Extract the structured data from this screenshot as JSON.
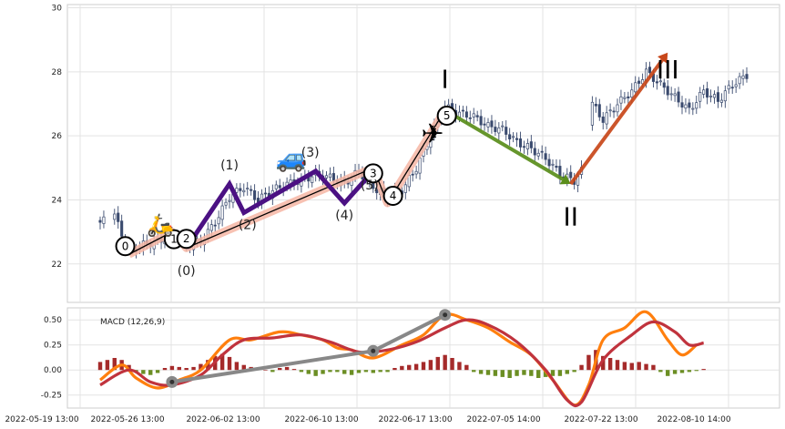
{
  "chart_data": [
    {
      "type": "candlestick",
      "panel": "price",
      "grid": true,
      "ylim": [
        20.8,
        30.1
      ],
      "yticks": [
        "22",
        "24",
        "26",
        "28",
        "30"
      ],
      "close_path_approx": [
        [
          0,
          23.3
        ],
        [
          4,
          23.5
        ],
        [
          8,
          22.4
        ],
        [
          12,
          22.6
        ],
        [
          16,
          22.7
        ],
        [
          20,
          22.9
        ],
        [
          24,
          22.6
        ],
        [
          28,
          22.7
        ],
        [
          32,
          23.3
        ],
        [
          36,
          24.1
        ],
        [
          40,
          24.4
        ],
        [
          44,
          24.0
        ],
        [
          48,
          24.3
        ],
        [
          52,
          24.5
        ],
        [
          56,
          24.6
        ],
        [
          60,
          24.8
        ],
        [
          64,
          24.7
        ],
        [
          68,
          24.5
        ],
        [
          72,
          24.9
        ],
        [
          76,
          24.4
        ],
        [
          80,
          24.1
        ],
        [
          84,
          24.3
        ],
        [
          88,
          25.0
        ],
        [
          92,
          26.0
        ],
        [
          96,
          26.9
        ],
        [
          100,
          26.7
        ],
        [
          104,
          26.6
        ],
        [
          108,
          26.3
        ],
        [
          112,
          26.2
        ],
        [
          116,
          25.8
        ],
        [
          120,
          25.6
        ],
        [
          124,
          25.3
        ],
        [
          128,
          24.8
        ],
        [
          132,
          24.6
        ],
        [
          134,
          24.9
        ],
        [
          137,
          27.0
        ],
        [
          140,
          26.5
        ],
        [
          144,
          27.0
        ],
        [
          148,
          27.4
        ],
        [
          152,
          28.0
        ],
        [
          156,
          27.6
        ],
        [
          160,
          27.2
        ],
        [
          164,
          26.8
        ],
        [
          168,
          27.4
        ],
        [
          172,
          27.1
        ],
        [
          176,
          27.6
        ],
        [
          180,
          27.9
        ]
      ],
      "patterns": [
        {
          "points": [
            [
              8,
              22.3
            ],
            [
              20,
              23.0
            ],
            [
              24,
              22.5
            ],
            [
              76,
              25.0
            ],
            [
              80,
              23.9
            ],
            [
              96,
              26.8
            ]
          ],
          "labels": [
            "0",
            "1",
            "2",
            "3",
            "4",
            "5"
          ]
        },
        {
          "points": [
            [
              24,
              22.5
            ],
            [
              36,
              24.5
            ],
            [
              40,
              23.6
            ],
            [
              60,
              24.9
            ],
            [
              68,
              23.9
            ],
            [
              76,
              24.9
            ]
          ],
          "labels": [
            "(0)",
            "(1)",
            "(2)",
            "(3)",
            "(4)",
            "(5)"
          ]
        },
        {
          "points": [
            [
              96,
              26.8
            ],
            [
              131,
              24.5
            ]
          ],
          "labels": [
            "I",
            "II"
          ]
        },
        {
          "points": [
            [
              131,
              24.5
            ],
            [
              158,
              28.6
            ]
          ],
          "labels": [
            "III"
          ]
        }
      ]
    },
    {
      "type": "line+bar",
      "panel": "macd",
      "legend_text": "MACD (12,26,9)",
      "grid": true,
      "ylim": [
        -0.38,
        0.62
      ],
      "yticks": [
        "0.50",
        "0.25",
        "0.00",
        "-0.25"
      ],
      "xtick_labels": [
        "2022-05-19 13:00",
        "2022-05-26 13:00",
        "2022-06-02 13:00",
        "2022-06-10 13:00",
        "2022-06-17 13:00",
        "2022-07-05 14:00",
        "2022-07-22 13:00",
        "2022-08-10 14:00"
      ],
      "macd": [
        [
          0,
          -0.1
        ],
        [
          6,
          0.05
        ],
        [
          10,
          -0.08
        ],
        [
          16,
          -0.18
        ],
        [
          22,
          -0.1
        ],
        [
          28,
          0.0
        ],
        [
          36,
          0.3
        ],
        [
          42,
          0.3
        ],
        [
          50,
          0.38
        ],
        [
          56,
          0.35
        ],
        [
          62,
          0.3
        ],
        [
          66,
          0.22
        ],
        [
          70,
          0.2
        ],
        [
          76,
          0.12
        ],
        [
          84,
          0.25
        ],
        [
          90,
          0.35
        ],
        [
          96,
          0.55
        ],
        [
          102,
          0.5
        ],
        [
          108,
          0.42
        ],
        [
          114,
          0.28
        ],
        [
          120,
          0.15
        ],
        [
          126,
          -0.1
        ],
        [
          132,
          -0.35
        ],
        [
          136,
          -0.15
        ],
        [
          140,
          0.3
        ],
        [
          146,
          0.42
        ],
        [
          152,
          0.58
        ],
        [
          158,
          0.3
        ],
        [
          162,
          0.15
        ],
        [
          166,
          0.25
        ]
      ],
      "signal": [
        [
          0,
          -0.15
        ],
        [
          8,
          0.0
        ],
        [
          14,
          -0.12
        ],
        [
          20,
          -0.15
        ],
        [
          28,
          -0.05
        ],
        [
          34,
          0.15
        ],
        [
          40,
          0.3
        ],
        [
          48,
          0.32
        ],
        [
          56,
          0.35
        ],
        [
          64,
          0.28
        ],
        [
          72,
          0.18
        ],
        [
          80,
          0.2
        ],
        [
          88,
          0.28
        ],
        [
          96,
          0.42
        ],
        [
          102,
          0.5
        ],
        [
          108,
          0.45
        ],
        [
          116,
          0.28
        ],
        [
          124,
          0.0
        ],
        [
          130,
          -0.3
        ],
        [
          134,
          -0.32
        ],
        [
          140,
          0.1
        ],
        [
          148,
          0.35
        ],
        [
          154,
          0.48
        ],
        [
          160,
          0.38
        ],
        [
          164,
          0.25
        ],
        [
          168,
          0.27
        ]
      ],
      "histogram_approx": [
        [
          0,
          0.08
        ],
        [
          2,
          0.1
        ],
        [
          4,
          0.12
        ],
        [
          6,
          0.1
        ],
        [
          8,
          0.05
        ],
        [
          10,
          -0.02
        ],
        [
          12,
          -0.04
        ],
        [
          14,
          -0.05
        ],
        [
          16,
          -0.03
        ],
        [
          18,
          0.02
        ],
        [
          20,
          0.04
        ],
        [
          22,
          0.03
        ],
        [
          24,
          0.02
        ],
        [
          26,
          0.03
        ],
        [
          28,
          0.06
        ],
        [
          30,
          0.1
        ],
        [
          32,
          0.14
        ],
        [
          34,
          0.16
        ],
        [
          36,
          0.13
        ],
        [
          38,
          0.08
        ],
        [
          40,
          0.05
        ],
        [
          42,
          0.03
        ],
        [
          44,
          0.02
        ],
        [
          46,
          0.0
        ],
        [
          48,
          -0.02
        ],
        [
          50,
          0.02
        ],
        [
          52,
          0.03
        ],
        [
          54,
          0.01
        ],
        [
          56,
          -0.02
        ],
        [
          58,
          -0.04
        ],
        [
          60,
          -0.06
        ],
        [
          62,
          -0.04
        ],
        [
          64,
          -0.02
        ],
        [
          66,
          -0.02
        ],
        [
          68,
          -0.04
        ],
        [
          70,
          -0.05
        ],
        [
          72,
          -0.03
        ],
        [
          74,
          -0.02
        ],
        [
          76,
          -0.03
        ],
        [
          78,
          -0.02
        ],
        [
          80,
          -0.02
        ],
        [
          82,
          0.02
        ],
        [
          84,
          0.04
        ],
        [
          86,
          0.05
        ],
        [
          88,
          0.06
        ],
        [
          90,
          0.08
        ],
        [
          92,
          0.1
        ],
        [
          94,
          0.13
        ],
        [
          96,
          0.15
        ],
        [
          98,
          0.12
        ],
        [
          100,
          0.08
        ],
        [
          102,
          0.05
        ],
        [
          104,
          -0.02
        ],
        [
          106,
          -0.04
        ],
        [
          108,
          -0.05
        ],
        [
          110,
          -0.06
        ],
        [
          112,
          -0.07
        ],
        [
          114,
          -0.08
        ],
        [
          116,
          -0.06
        ],
        [
          118,
          -0.05
        ],
        [
          120,
          -0.06
        ],
        [
          122,
          -0.08
        ],
        [
          124,
          -0.07
        ],
        [
          126,
          -0.06
        ],
        [
          128,
          -0.06
        ],
        [
          130,
          -0.04
        ],
        [
          132,
          -0.02
        ],
        [
          134,
          0.05
        ],
        [
          136,
          0.15
        ],
        [
          138,
          0.2
        ],
        [
          140,
          0.14
        ],
        [
          142,
          0.12
        ],
        [
          144,
          0.1
        ],
        [
          146,
          0.08
        ],
        [
          148,
          0.07
        ],
        [
          150,
          0.08
        ],
        [
          152,
          0.06
        ],
        [
          154,
          0.05
        ],
        [
          156,
          -0.02
        ],
        [
          158,
          -0.06
        ],
        [
          160,
          -0.04
        ],
        [
          162,
          -0.03
        ],
        [
          164,
          -0.02
        ],
        [
          166,
          -0.01
        ],
        [
          168,
          0.01
        ]
      ],
      "markers": [
        [
          20,
          -0.12
        ],
        [
          76,
          0.19
        ],
        [
          96,
          0.55
        ]
      ]
    }
  ],
  "colors": {
    "candle": "#3a4a6e",
    "grid": "#e3e3e3",
    "frame": "#cccccc",
    "pattern_thin": "#000000",
    "pattern_glow": "#f6b6a4",
    "pattern_purple": "#4b1183",
    "arrow_green": "#5a8e1b",
    "arrow_orange": "#c8471a",
    "macd_line": "#ff7f0e",
    "signal_line": "#c0333d",
    "hist_pos": "#a52a2a",
    "hist_neg": "#6b8e23",
    "marker_line": "#888888"
  },
  "icons": [
    "scooter-icon",
    "car-icon",
    "airplane-icon"
  ]
}
